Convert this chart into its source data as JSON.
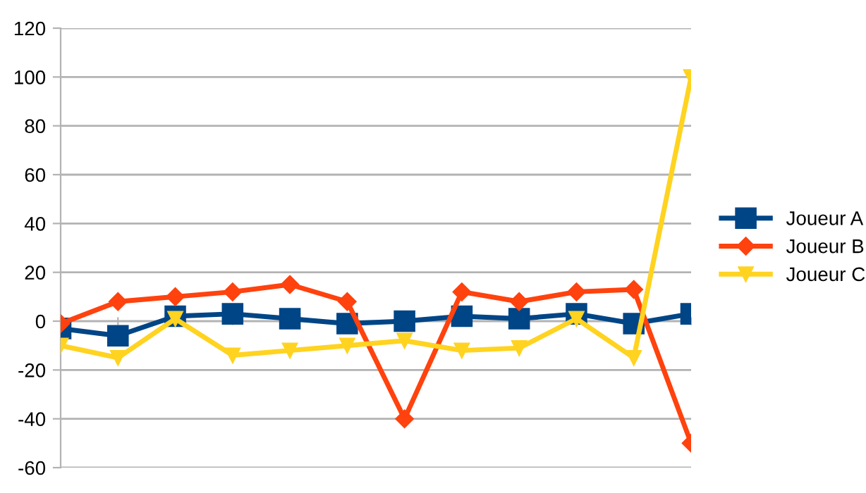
{
  "chart_data": {
    "type": "line",
    "categories": [
      null,
      null,
      null,
      null,
      null,
      null,
      null,
      null,
      null,
      null,
      null,
      null
    ],
    "series": [
      {
        "name": "Joueur A",
        "color": "#004586",
        "marker": "square",
        "values": [
          -3,
          -6,
          2,
          3,
          1,
          -1,
          0,
          2,
          1,
          3,
          -1,
          3
        ]
      },
      {
        "name": "Joueur B",
        "color": "#ff420e",
        "marker": "diamond",
        "values": [
          -1,
          8,
          10,
          12,
          15,
          8,
          -40,
          12,
          8,
          12,
          13,
          -50
        ]
      },
      {
        "name": "Joueur C",
        "color": "#ffd320",
        "marker": "triangle",
        "values": [
          -10,
          -15,
          1,
          -14,
          -12,
          -10,
          -8,
          -12,
          -11,
          1,
          -15,
          100
        ]
      }
    ],
    "ylim": [
      -60,
      120
    ],
    "yticks": [
      -60,
      -40,
      -20,
      0,
      20,
      40,
      60,
      80,
      100,
      120
    ],
    "grid": "y",
    "legend": "right"
  }
}
